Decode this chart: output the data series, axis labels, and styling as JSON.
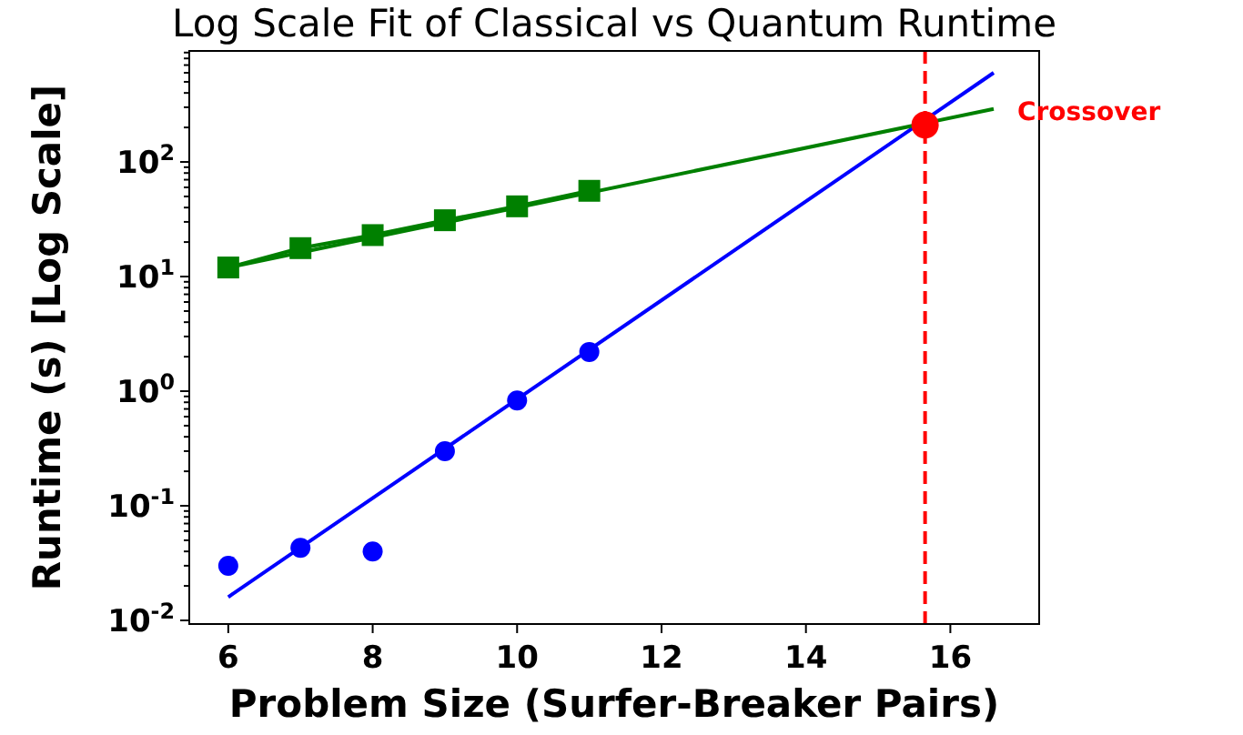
{
  "chart_data": {
    "type": "scatter",
    "title": "Log Scale Fit of Classical vs Quantum Runtime",
    "xlabel": "Problem Size (Surfer-Breaker Pairs)",
    "ylabel": "Runtime (s) [Log Scale]",
    "log": "y",
    "grid": false,
    "xlim": [
      5.46,
      17.23
    ],
    "xticks": [
      6,
      8,
      10,
      12,
      14,
      16
    ],
    "ylim": [
      0.0093,
      930
    ],
    "yticks": [
      {
        "value": 0.01,
        "label": "10$^{-2}$"
      },
      {
        "value": 0.1,
        "label": "10$^{-1}$"
      },
      {
        "value": 1,
        "label": "10$^{0}$"
      },
      {
        "value": 10,
        "label": "10$^{1}$"
      },
      {
        "value": 100,
        "label": "10$^{2}$"
      }
    ],
    "series": [
      {
        "color": "#0000ff",
        "marker": "circle",
        "x": [
          6,
          7,
          8,
          9,
          10,
          11
        ],
        "values": [
          0.03,
          0.043,
          0.04,
          0.3,
          0.83,
          2.2
        ]
      },
      {
        "type": "line",
        "color": "#008000",
        "marker": "square",
        "x": [
          6,
          7,
          8,
          9,
          10,
          11
        ],
        "values": [
          12,
          17.7,
          23,
          31,
          41,
          56
        ]
      },
      {
        "type": "line",
        "color": "#0000ff",
        "marker": "none",
        "x": [
          6,
          16.6
        ],
        "values": [
          0.016,
          600
        ]
      },
      {
        "type": "line",
        "color": "#008000",
        "marker": "none",
        "x": [
          6,
          16.6
        ],
        "values": [
          12,
          290
        ]
      },
      {
        "color": "#ff0000",
        "marker": "circle",
        "x": [
          15.65
        ],
        "values": [
          210
        ]
      }
    ],
    "ref_lines": [
      {
        "axis": "x",
        "value": 15.65,
        "color": "#ff0000",
        "line_style": "dashed"
      }
    ],
    "annotations": [
      "Crossover"
    ]
  }
}
